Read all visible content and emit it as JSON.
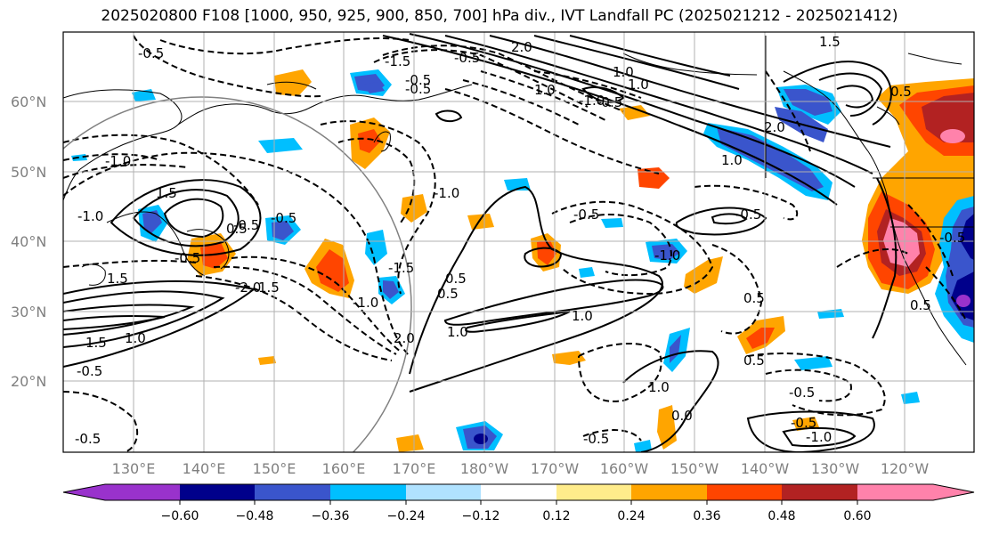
{
  "title": "2025020800 F108 [1000, 950, 925, 900, 850, 700] hPa div., IVT Landfall PC (2025021212 - 2025021412)",
  "lat_labels": [
    "60°N",
    "50°N",
    "40°N",
    "30°N",
    "20°N"
  ],
  "lon_labels": [
    "130°E",
    "140°E",
    "150°E",
    "160°E",
    "170°E",
    "180°W",
    "170°W",
    "160°W",
    "150°W",
    "140°W",
    "130°W",
    "120°W"
  ],
  "colorbar": {
    "colors": [
      "#9932cc",
      "#00008b",
      "#3a55cc",
      "#00bfff",
      "#b0e2ff",
      "#ffffff",
      "#ffec8b",
      "#ffa500",
      "#ff4500",
      "#b22222",
      "#ff82ab"
    ],
    "tick_labels": [
      "−0.60",
      "−0.48",
      "−0.36",
      "−0.24",
      "−0.12",
      "0.12",
      "0.24",
      "0.36",
      "0.48",
      "0.60"
    ]
  },
  "contour_labels": [
    "-0.5",
    "-1.5",
    "2.0",
    "1.0",
    "1.0",
    "-0.5",
    "1.0",
    "-0.5",
    "0.5",
    "-1.0",
    "1.5",
    "2.0",
    "1.0",
    "-1.0",
    "-0.5",
    "1.5",
    "-1.0",
    "-0.5",
    "1.5",
    "0.5",
    "1.0",
    "1.0",
    "-2.0",
    "1.5",
    "-0.5",
    "1.5",
    "-1.0",
    "2.0",
    "-0.5",
    "-1.0",
    "-0.5",
    "0.5",
    "-1.0",
    "1.0",
    "1.0",
    "-0.5",
    "-0.5",
    "-1.0",
    "0.5",
    "-0.5",
    "0.0",
    "0.5",
    "0.5",
    "-0.5",
    "-0.5",
    "-0.5",
    "-1.5",
    "0.5",
    "-0.5",
    "-0.5"
  ]
}
